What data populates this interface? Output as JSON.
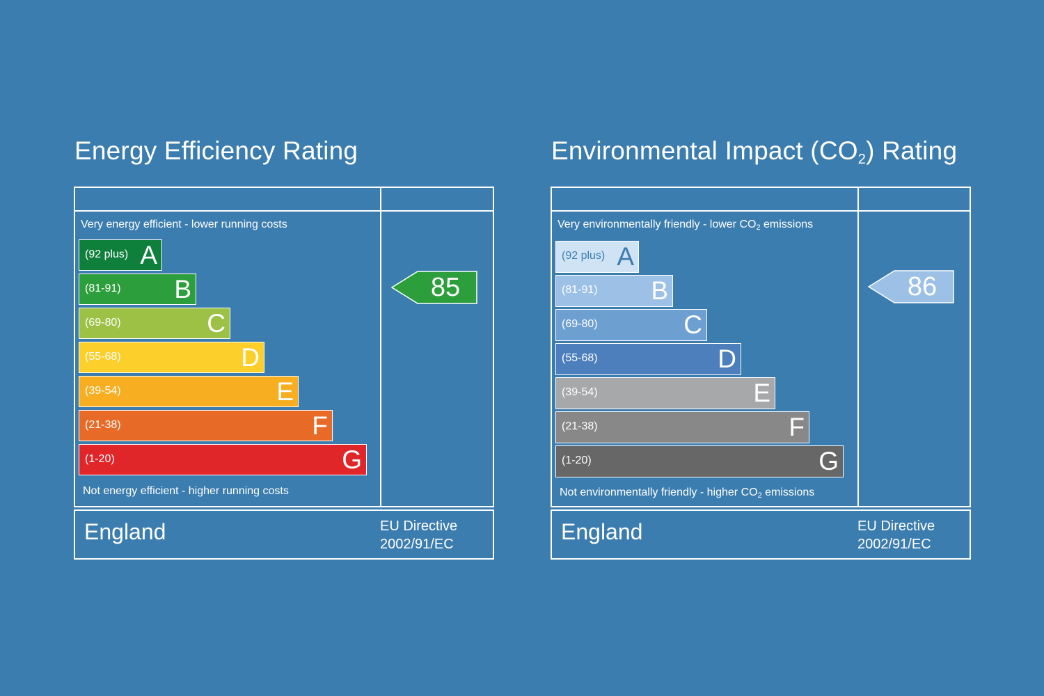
{
  "chart_data": [
    {
      "type": "bar",
      "title": "Energy Efficiency Rating",
      "top_caption": "Very energy efficient - lower running costs",
      "bottom_caption": "Not energy efficient - higher running costs",
      "bands": [
        {
          "letter": "A",
          "range": "(92 plus)",
          "min": 92,
          "max": null,
          "color": "#0f803c",
          "text_color": "#ffffff"
        },
        {
          "letter": "B",
          "range": "(81-91)",
          "min": 81,
          "max": 91,
          "color": "#2c9f3c",
          "text_color": "#ffffff"
        },
        {
          "letter": "C",
          "range": "(69-80)",
          "min": 69,
          "max": 80,
          "color": "#9cc144",
          "text_color": "#ffffff"
        },
        {
          "letter": "D",
          "range": "(55-68)",
          "min": 55,
          "max": 68,
          "color": "#fccf2b",
          "text_color": "#ffffff"
        },
        {
          "letter": "E",
          "range": "(39-54)",
          "min": 39,
          "max": 54,
          "color": "#f7ae20",
          "text_color": "#ffffff"
        },
        {
          "letter": "F",
          "range": "(21-38)",
          "min": 21,
          "max": 38,
          "color": "#e86a27",
          "text_color": "#ffffff"
        },
        {
          "letter": "G",
          "range": "(1-20)",
          "min": 1,
          "max": 20,
          "color": "#e1262a",
          "text_color": "#ffffff"
        }
      ],
      "current_rating": {
        "value": 85,
        "band": "B",
        "color": "#2c9f3c"
      },
      "country": "England",
      "directive": [
        "EU Directive",
        "2002/91/EC"
      ]
    },
    {
      "type": "bar",
      "title": "Environmental Impact (CO",
      "title_sub": "2",
      "title_suffix": ") Rating",
      "top_caption": "Very environmentally friendly - lower CO",
      "top_caption_sub": "2",
      "top_caption_suffix": " emissions",
      "bottom_caption": "Not environmentally friendly - higher CO",
      "bottom_caption_sub": "2",
      "bottom_caption_suffix": " emissions",
      "bands": [
        {
          "letter": "A",
          "range": "(92 plus)",
          "min": 92,
          "max": null,
          "color": "#cfe3f4",
          "text_color": "#3c7daf"
        },
        {
          "letter": "B",
          "range": "(81-91)",
          "min": 81,
          "max": 91,
          "color": "#9dc1e6",
          "text_color": "#ffffff"
        },
        {
          "letter": "C",
          "range": "(69-80)",
          "min": 69,
          "max": 80,
          "color": "#6e9fd1",
          "text_color": "#ffffff"
        },
        {
          "letter": "D",
          "range": "(55-68)",
          "min": 55,
          "max": 68,
          "color": "#4d7fbd",
          "text_color": "#ffffff"
        },
        {
          "letter": "E",
          "range": "(39-54)",
          "min": 39,
          "max": 54,
          "color": "#a7a8a9",
          "text_color": "#ffffff"
        },
        {
          "letter": "F",
          "range": "(21-38)",
          "min": 21,
          "max": 38,
          "color": "#888888",
          "text_color": "#ffffff"
        },
        {
          "letter": "G",
          "range": "(1-20)",
          "min": 1,
          "max": 20,
          "color": "#676767",
          "text_color": "#ffffff"
        }
      ],
      "current_rating": {
        "value": 86,
        "band": "B",
        "color": "#9dc1e6"
      },
      "country": "England",
      "directive": [
        "EU Directive",
        "2002/91/EC"
      ]
    }
  ]
}
